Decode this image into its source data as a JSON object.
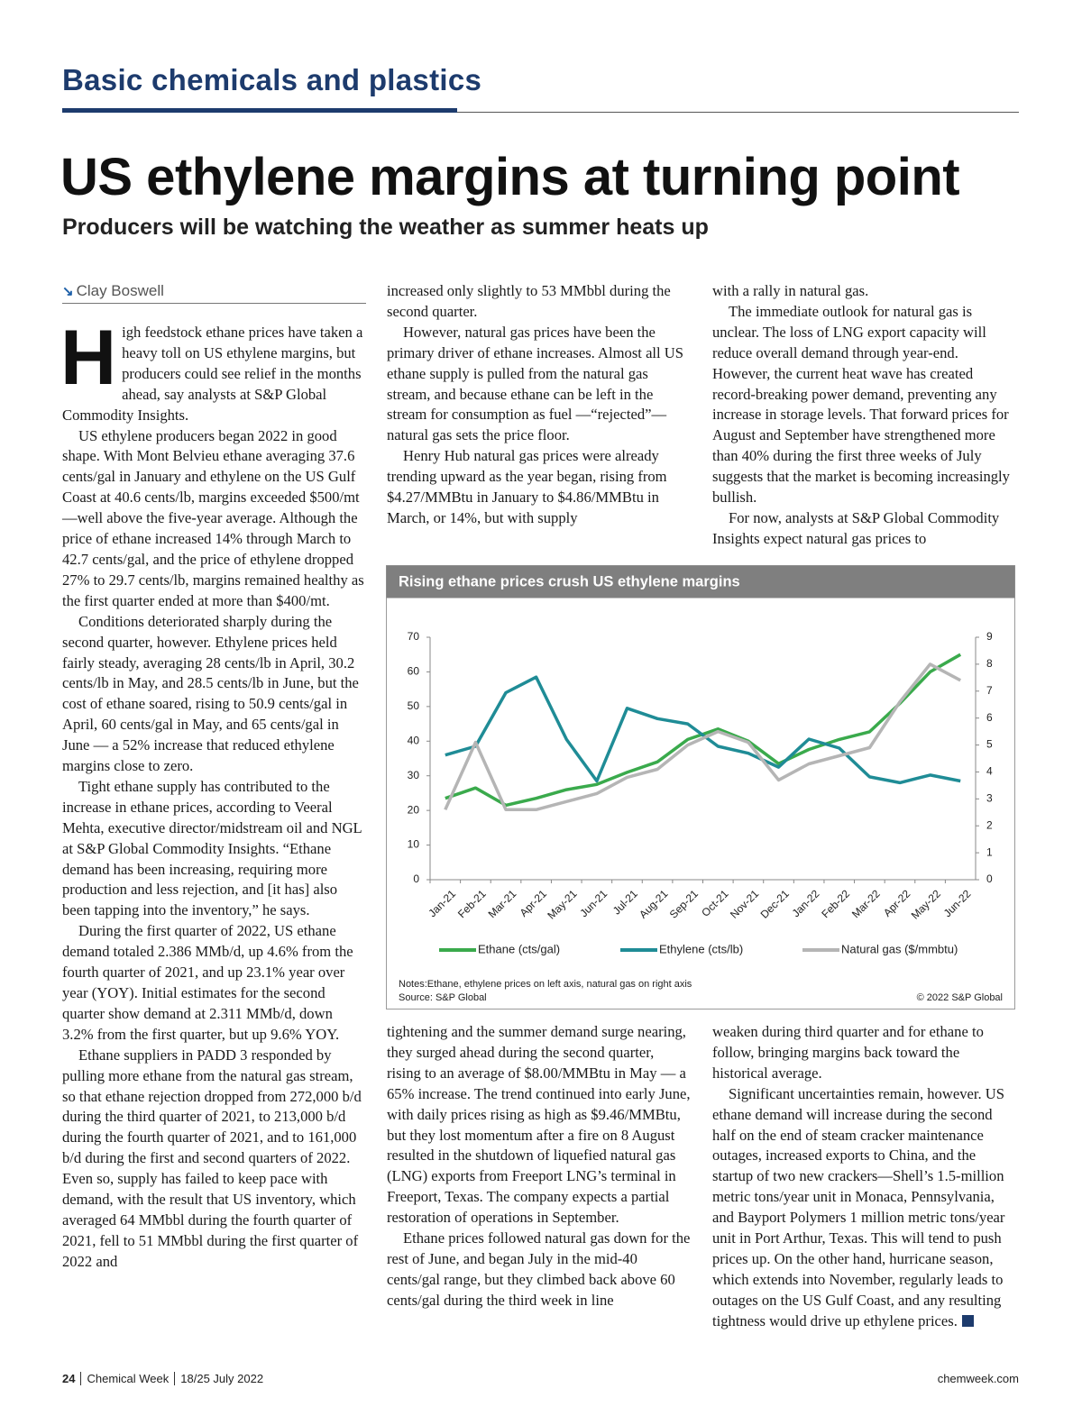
{
  "header": {
    "section": "Basic chemicals and plastics",
    "title": "US ethylene margins at turning point",
    "subtitle": "Producers will be watching the weather as summer heats up",
    "author": "Clay Boswell"
  },
  "article": {
    "drop_cap": "H",
    "column1": [
      "igh feedstock ethane prices have taken a heavy toll on US ethylene margins, but producers could see relief in the months ahead, say analysts at S&P Global Commodity Insights.",
      "US ethylene producers began 2022 in good shape. With Mont Belvieu ethane averaging 37.6 cents/gal in January and ethylene on the US Gulf Coast at 40.6 cents/lb, margins exceeded $500/mt—well above the five-year average. Although the price of ethane increased 14% through March to 42.7 cents/gal, and the price of ethylene dropped 27% to 29.7 cents/lb, margins remained healthy as the first quarter ended at more than $400/mt.",
      "Conditions deteriorated sharply during the second quarter, however. Ethylene prices held fairly steady, averaging 28 cents/lb in April, 30.2 cents/lb in May, and 28.5 cents/lb in June, but the cost of ethane soared, rising to 50.9 cents/gal in April, 60 cents/gal in May, and 65 cents/gal in June — a 52% increase that reduced ethylene margins close to zero.",
      "Tight ethane supply has contributed to the increase in ethane prices, according to Veeral Mehta, executive director/midstream oil and NGL at S&P Global Commodity Insights. “Ethane demand has been increasing, requiring more production and less rejection, and [it has] also been tapping into the inventory,” he says.",
      "During the first quarter of 2022, US ethane demand totaled 2.386 MMb/d, up 4.6% from the fourth quarter of 2021, and up 23.1% year over year (YOY). Initial estimates for the second quarter show demand at 2.311 MMb/d, down 3.2% from the first quarter, but up 9.6% YOY.",
      "Ethane suppliers in PADD 3 responded by pulling more ethane from the natural gas stream, so that ethane rejection dropped from 272,000 b/d during the third quarter of 2021, to 213,000 b/d during the fourth quarter of 2021, and to 161,000 b/d during the first and second quarters of 2022. Even so, supply has failed to keep pace with demand, with the result that US inventory, which averaged 64 MMbbl during the fourth quarter of 2021, fell to 51 MMbbl during the first quarter of 2022 and"
    ],
    "column2_top": [
      "increased only slightly to 53 MMbbl during the second quarter.",
      "However, natural gas prices have been the primary driver of ethane increases. Almost all US ethane supply is pulled from the natural gas stream, and because ethane can be left in the stream for consumption as fuel —“rejected”— natural gas sets the price floor.",
      "Henry Hub natural gas prices were already trending upward as the year began, rising from $4.27/MMBtu in January to $4.86/MMBtu in March, or 14%, but with supply"
    ],
    "column3_top": [
      "with a rally in natural gas.",
      "The immediate outlook for natural gas is unclear. The loss of LNG export capacity will reduce overall demand through year-end. However, the current heat wave has created record-breaking power demand, preventing any increase in storage levels. That forward prices for August and September have strengthened more than 40% during the first three weeks of July suggests that the market is becoming increasingly bullish.",
      "For now, analysts at S&P Global Commodity Insights expect natural gas prices to"
    ],
    "column2_bottom": [
      "tightening and the summer demand surge nearing, they surged ahead during the second quarter, rising to an average of $8.00/MMBtu in May — a 65% increase. The trend continued into early June, with daily prices rising as high as $9.46/MMBtu, but they lost momentum after a fire on 8 August resulted in the shutdown of liquefied natural gas (LNG) exports from Freeport LNG’s terminal in Freeport, Texas. The company expects a partial restoration of operations in September.",
      "Ethane prices followed natural gas down for the rest of June, and began July in the mid-40 cents/gal range, but they climbed back above 60 cents/gal during the third week in line"
    ],
    "column3_bottom": [
      "weaken during third quarter and for ethane to follow, bringing margins back toward the historical average.",
      "Significant uncertainties remain, however. US ethane demand will increase during the second half on the end of steam cracker maintenance outages, increased exports to China, and the startup of two new crackers—Shell’s 1.5-million metric tons/year unit in Monaca, Pennsylvania, and Bayport Polymers 1 million metric tons/year unit in Port Arthur, Texas. This will tend to push prices up. On the other hand, hurricane season, which extends into November, regularly leads to outages on the US Gulf Coast, and any resulting tightness would drive up ethylene prices."
    ]
  },
  "chart_data": {
    "type": "line",
    "title": "Rising ethane prices crush US ethylene margins",
    "categories": [
      "Jan-21",
      "Feb-21",
      "Mar-21",
      "Apr-21",
      "May-21",
      "Jun-21",
      "Jul-21",
      "Aug-21",
      "Sep-21",
      "Oct-21",
      "Nov-21",
      "Dec-21",
      "Jan-22",
      "Feb-22",
      "Mar-22",
      "Apr-22",
      "May-22",
      "Jun-22"
    ],
    "series": [
      {
        "name": "Ethane (cts/gal)",
        "color": "#3aaa4c",
        "values": [
          23.5,
          26.5,
          21.5,
          23.5,
          26,
          27.5,
          31,
          34,
          40.5,
          43.5,
          40,
          33.5,
          37.6,
          40.5,
          42.7,
          50.9,
          60,
          65
        ]
      },
      {
        "name": "Ethylene (cts/lb)",
        "color": "#1f8c96",
        "values": [
          36,
          38.5,
          54,
          58.5,
          40.5,
          28.5,
          49.5,
          46.5,
          45,
          38.5,
          36.5,
          32.5,
          40.6,
          38,
          29.7,
          28,
          30.2,
          28.5
        ]
      },
      {
        "name": "Natural gas ($/mmbtu)",
        "color": "#b5b5b5",
        "axis": "y2",
        "values": [
          2.6,
          5.1,
          2.6,
          2.6,
          2.9,
          3.2,
          3.8,
          4.1,
          5.0,
          5.5,
          5.1,
          3.7,
          4.3,
          4.6,
          4.9,
          6.6,
          8.0,
          7.4
        ]
      }
    ],
    "ylim": [
      0,
      70
    ],
    "yticks": [
      0,
      10,
      20,
      30,
      40,
      50,
      60,
      70
    ],
    "y2lim": [
      0,
      9
    ],
    "y2ticks": [
      0,
      1,
      2,
      3,
      4,
      5,
      6,
      7,
      8,
      9
    ],
    "grid": false,
    "legend": "bottom",
    "notes": "Notes:Ethane, ethylene prices on left axis, natural gas on right axis",
    "source": "Source: S&P Global",
    "copyright": "© 2022 S&P Global"
  },
  "footer": {
    "page": "24",
    "publication": "Chemical Week",
    "date": "18/25 July 2022",
    "website": "chemweek.com"
  }
}
